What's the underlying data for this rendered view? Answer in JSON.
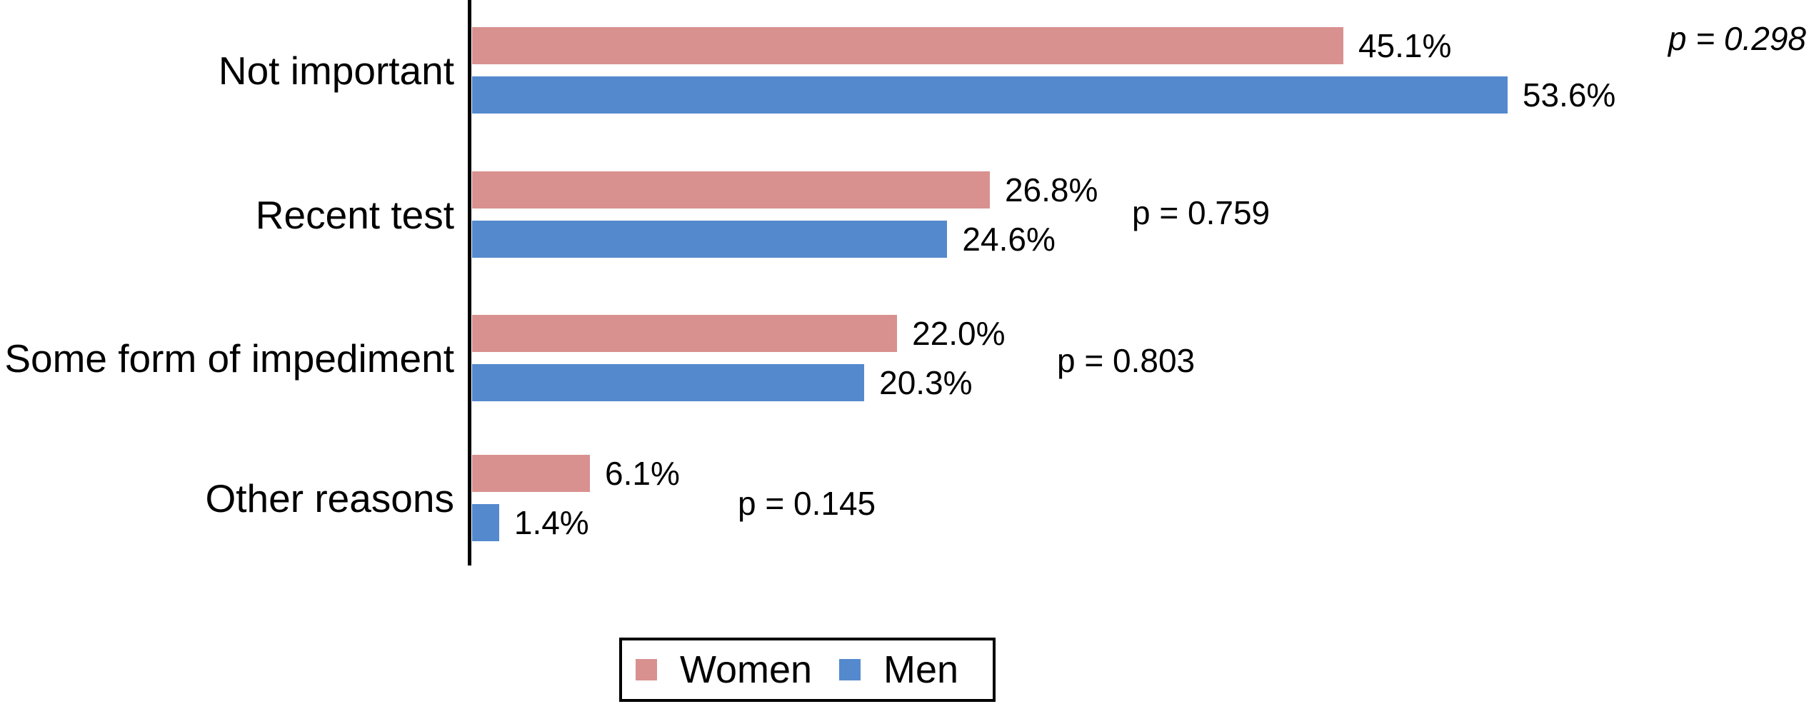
{
  "chart_data": {
    "type": "bar",
    "orientation": "horizontal",
    "title": "",
    "categories": [
      "Not important",
      "Recent test",
      "Some form of impediment",
      "Other reasons"
    ],
    "series": [
      {
        "name": "Women",
        "color": "#d8918f",
        "values": [
          45.1,
          26.8,
          22.0,
          6.1
        ]
      },
      {
        "name": "Men",
        "color": "#5489cd",
        "values": [
          53.6,
          24.6,
          20.3,
          1.4
        ]
      }
    ],
    "value_labels": {
      "women": [
        "45.1%",
        "26.8%",
        "22.0%",
        "6.1%"
      ],
      "men": [
        "53.6%",
        "24.6%",
        "20.3%",
        "1.4%"
      ]
    },
    "p_values": [
      "p = 0.298",
      "p = 0.759",
      "p = 0.803",
      "p = 0.145"
    ],
    "xlim": [
      0,
      69.2
    ],
    "unit": "percent",
    "grid": false,
    "legend_position": "bottom"
  },
  "rows": [
    {
      "label": "Not important",
      "women_value": "45.1%",
      "men_value": "53.6%",
      "p": "p = 0.298"
    },
    {
      "label": "Recent test",
      "women_value": "26.8%",
      "men_value": "24.6%",
      "p": "p = 0.759"
    },
    {
      "label": "Some form of impediment",
      "women_value": "22.0%",
      "men_value": "20.3%",
      "p": "p = 0.803"
    },
    {
      "label": "Other reasons",
      "women_value": "6.1%",
      "men_value": "1.4%",
      "p": "p = 0.145"
    }
  ],
  "legend": {
    "women": "Women",
    "men": "Men"
  },
  "colors": {
    "women": "#d8918f",
    "men": "#5489cd",
    "axis": "#000000"
  }
}
